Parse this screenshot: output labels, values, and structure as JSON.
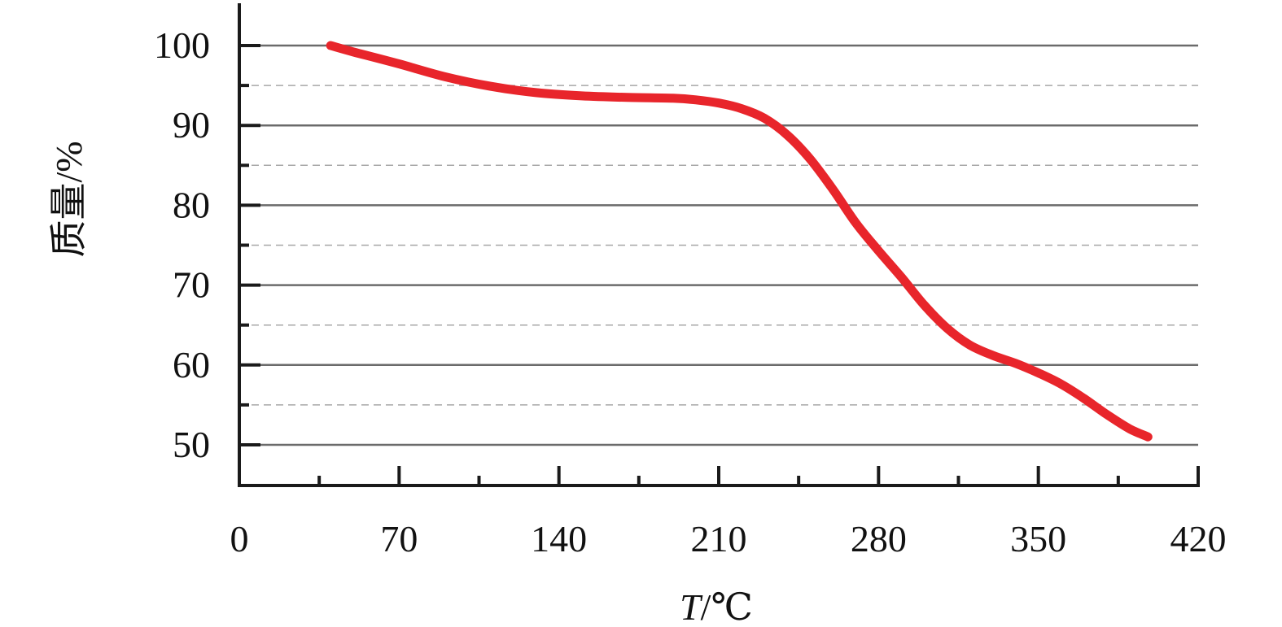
{
  "chart_data": {
    "type": "line",
    "xlabel": "T/℃",
    "xlabel_parts": {
      "var": "T",
      "unit": "/℃"
    },
    "ylabel": "质量/%",
    "xlim": [
      0,
      420
    ],
    "ylim": [
      45,
      105
    ],
    "xticks": [
      0,
      70,
      140,
      210,
      280,
      350,
      420
    ],
    "xtick_labels": [
      "0",
      "70",
      "140",
      "210",
      "280",
      "350",
      "420"
    ],
    "x_minor_ticks": [
      35,
      105,
      175,
      245,
      315,
      385
    ],
    "yticks": [
      50,
      60,
      70,
      80,
      90,
      100
    ],
    "ytick_labels": [
      "50",
      "60",
      "70",
      "80",
      "90",
      "100"
    ],
    "y_minor_ticks": [
      55,
      65,
      75,
      85,
      95
    ],
    "grid": "major solid, minor dashed (horizontal)",
    "colors": {
      "line": "#e8252b",
      "axis": "#1a1a1a",
      "grid_major": "#6b6b6b",
      "grid_minor": "#a8a8a8"
    },
    "series": [
      {
        "x": [
          40,
          50,
          70,
          90,
          110,
          130,
          150,
          170,
          190,
          200,
          210,
          220,
          230,
          240,
          250,
          260,
          270,
          280,
          290,
          300,
          310,
          320,
          330,
          340,
          350,
          360,
          370,
          380,
          390,
          398
        ],
        "y": [
          100,
          99.2,
          97.7,
          96.1,
          94.9,
          94.1,
          93.7,
          93.5,
          93.4,
          93.2,
          92.8,
          92.1,
          90.9,
          88.8,
          85.8,
          82.0,
          77.8,
          74.3,
          71.0,
          67.5,
          64.6,
          62.5,
          61.2,
          60.2,
          59.0,
          57.6,
          55.8,
          53.8,
          52.0,
          51.0
        ]
      }
    ]
  }
}
